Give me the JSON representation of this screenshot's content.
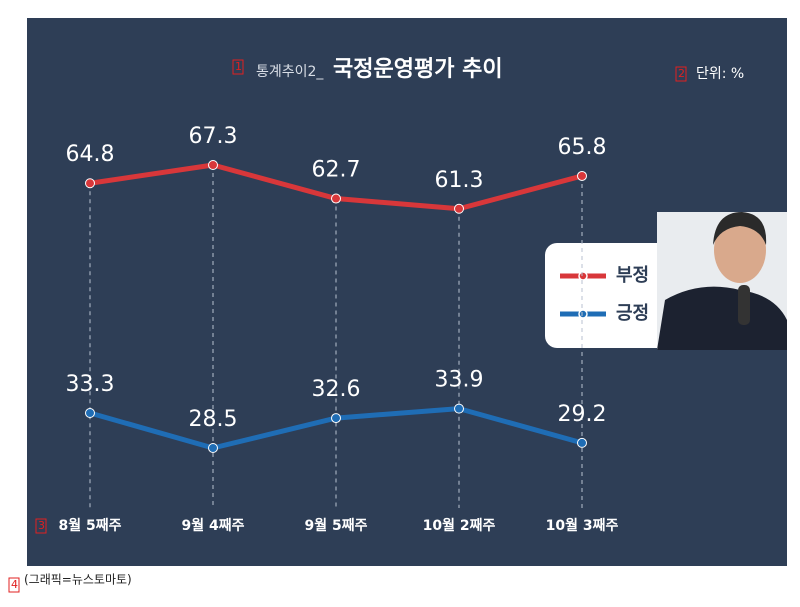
{
  "chart_data": {
    "type": "line",
    "title_prefix": "통계추이2_",
    "title": "국정운영평가 추이",
    "unit": "단위: %",
    "categories": [
      "8월 5째주",
      "9월 4째주",
      "9월 5째주",
      "10월 2째주",
      "10월 3째주"
    ],
    "series": [
      {
        "name": "부정",
        "color": "#d8373a",
        "values": [
          64.8,
          67.3,
          62.7,
          61.3,
          65.8
        ]
      },
      {
        "name": "긍정",
        "color": "#1f6db5",
        "values": [
          33.3,
          28.5,
          32.6,
          33.9,
          29.2
        ]
      }
    ],
    "caption": "(그래픽=뉴스토마토)",
    "markers": [
      "1",
      "2",
      "3",
      "4"
    ]
  }
}
